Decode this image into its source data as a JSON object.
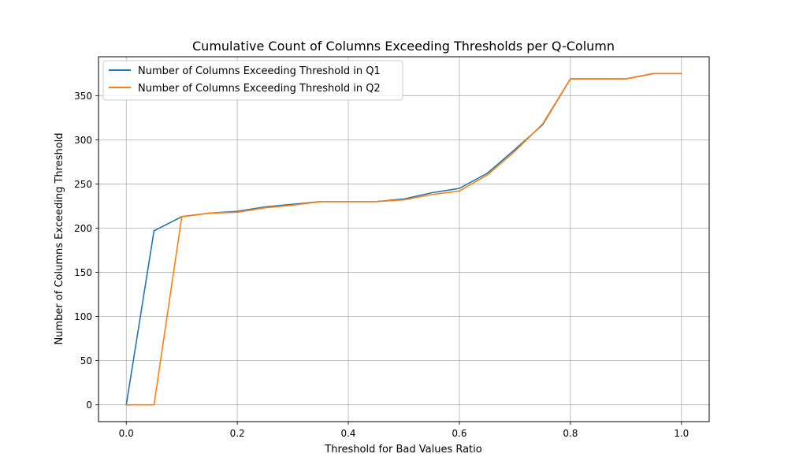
{
  "chart_data": {
    "type": "line",
    "title": "Cumulative Count of Columns Exceeding Thresholds per Q-Column",
    "xlabel": "Threshold for Bad Values Ratio",
    "ylabel": "Number of Columns Exceeding Threshold",
    "xlim": [
      -0.05,
      1.05
    ],
    "ylim": [
      -19,
      394
    ],
    "x_ticks": [
      "0.0",
      "0.2",
      "0.4",
      "0.6",
      "0.8",
      "1.0"
    ],
    "y_ticks": [
      "0",
      "50",
      "100",
      "150",
      "200",
      "250",
      "300",
      "350"
    ],
    "grid": true,
    "legend_position": "top-left",
    "x": [
      0.0,
      0.05,
      0.1,
      0.15,
      0.2,
      0.25,
      0.3,
      0.35,
      0.4,
      0.45,
      0.5,
      0.55,
      0.6,
      0.65,
      0.7,
      0.75,
      0.8,
      0.85,
      0.9,
      0.95,
      1.0
    ],
    "series": [
      {
        "name": "Number of Columns Exceeding Threshold in Q1",
        "color": "#1f77b4",
        "values": [
          0,
          197,
          213,
          217,
          219,
          224,
          227,
          230,
          230,
          230,
          233,
          240,
          245,
          262,
          289,
          317,
          369,
          369,
          369,
          375,
          375
        ]
      },
      {
        "name": "Number of Columns Exceeding Threshold in Q2",
        "color": "#ff7f0e",
        "values": [
          0,
          0,
          213,
          217,
          218,
          223,
          226,
          230,
          230,
          230,
          232,
          238,
          242,
          260,
          287,
          318,
          369,
          369,
          369,
          375,
          375
        ]
      }
    ]
  }
}
